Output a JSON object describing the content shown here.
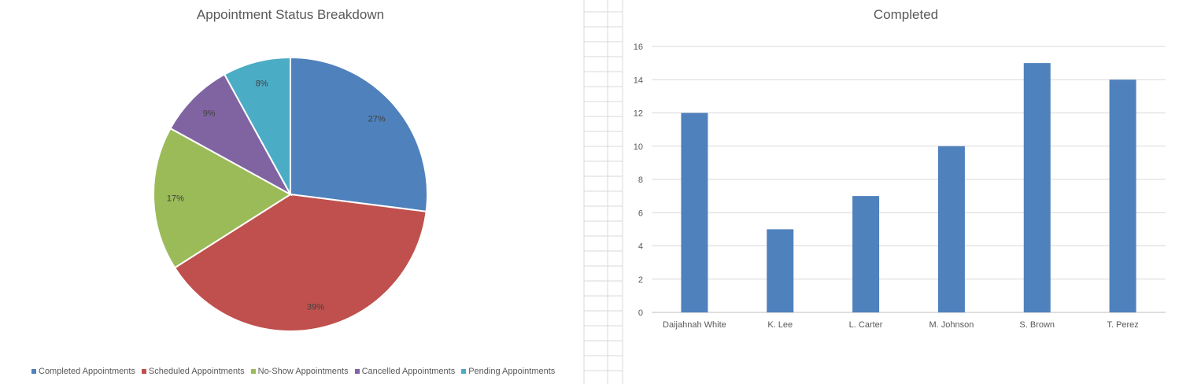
{
  "chart_data": [
    {
      "type": "pie",
      "title": "Appointment Status Breakdown",
      "categories": [
        "Completed Appointments",
        "Scheduled Appointments",
        "No-Show Appointments",
        "Cancelled Appointments",
        "Pending Appointments"
      ],
      "values": [
        27,
        39,
        17,
        9,
        8
      ],
      "data_labels": [
        "27%",
        "39%",
        "17%",
        "9%",
        "8%"
      ],
      "colors": [
        "#4f81bd",
        "#c0504d",
        "#9bbb59",
        "#8064a2",
        "#4bacc6"
      ],
      "legend": "bottom"
    },
    {
      "type": "bar",
      "title": "Completed",
      "categories": [
        "Daijahnah White",
        "K. Lee",
        "L. Carter",
        "M. Johnson",
        "S. Brown",
        "T. Perez"
      ],
      "values": [
        12,
        5,
        7,
        10,
        15,
        14
      ],
      "ylim": [
        0,
        16
      ],
      "yticks": [
        0,
        2,
        4,
        6,
        8,
        10,
        12,
        14,
        16
      ],
      "grid": true,
      "color": "#4f81bd"
    }
  ]
}
